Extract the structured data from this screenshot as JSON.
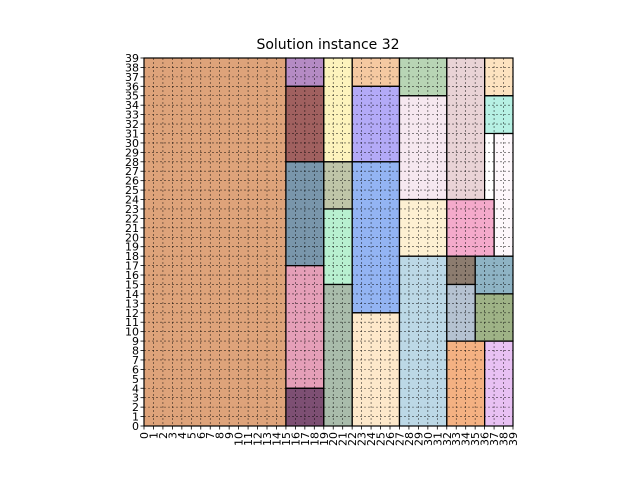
{
  "chart_data": {
    "type": "heatmap",
    "title": "Solution instance 32",
    "xlabel": "",
    "ylabel": "",
    "xlim": [
      0,
      39
    ],
    "ylim": [
      0,
      39
    ],
    "x_ticks": [
      "0",
      "1",
      "2",
      "3",
      "4",
      "5",
      "6",
      "7",
      "8",
      "9",
      "10",
      "11",
      "12",
      "13",
      "14",
      "15",
      "16",
      "17",
      "18",
      "19",
      "20",
      "21",
      "22",
      "23",
      "24",
      "25",
      "26",
      "27",
      "28",
      "29",
      "30",
      "31",
      "32",
      "33",
      "34",
      "35",
      "36",
      "37",
      "38",
      "39"
    ],
    "y_ticks": [
      "0",
      "1",
      "2",
      "3",
      "4",
      "5",
      "6",
      "7",
      "8",
      "9",
      "10",
      "11",
      "12",
      "13",
      "14",
      "15",
      "16",
      "17",
      "18",
      "19",
      "20",
      "21",
      "22",
      "23",
      "24",
      "25",
      "26",
      "27",
      "28",
      "29",
      "30",
      "31",
      "32",
      "33",
      "34",
      "35",
      "36",
      "37",
      "38",
      "39"
    ],
    "grid": true,
    "rectangles": [
      {
        "x0": 0,
        "y0": 0,
        "x1": 15,
        "y1": 39,
        "color": "#dea37a"
      },
      {
        "x0": 15,
        "y0": 36,
        "x1": 19,
        "y1": 39,
        "color": "#b58bc4"
      },
      {
        "x0": 15,
        "y0": 28,
        "x1": 19,
        "y1": 36,
        "color": "#a0605f"
      },
      {
        "x0": 15,
        "y0": 17,
        "x1": 19,
        "y1": 28,
        "color": "#7996ab"
      },
      {
        "x0": 15,
        "y0": 4,
        "x1": 19,
        "y1": 17,
        "color": "#e59fb8"
      },
      {
        "x0": 15,
        "y0": 0,
        "x1": 19,
        "y1": 4,
        "color": "#7d4f73"
      },
      {
        "x0": 19,
        "y0": 28,
        "x1": 22,
        "y1": 39,
        "color": "#fdf3bd"
      },
      {
        "x0": 19,
        "y0": 23,
        "x1": 22,
        "y1": 28,
        "color": "#bfc5a8"
      },
      {
        "x0": 19,
        "y0": 15,
        "x1": 22,
        "y1": 23,
        "color": "#b8f0d0"
      },
      {
        "x0": 19,
        "y0": 0,
        "x1": 22,
        "y1": 15,
        "color": "#a9bcab"
      },
      {
        "x0": 22,
        "y0": 36,
        "x1": 27,
        "y1": 39,
        "color": "#f5c9a1"
      },
      {
        "x0": 22,
        "y0": 28,
        "x1": 27,
        "y1": 36,
        "color": "#b3aaf7"
      },
      {
        "x0": 22,
        "y0": 12,
        "x1": 27,
        "y1": 28,
        "color": "#93b4f3"
      },
      {
        "x0": 22,
        "y0": 0,
        "x1": 27,
        "y1": 12,
        "color": "#fde8ca"
      },
      {
        "x0": 27,
        "y0": 35,
        "x1": 32,
        "y1": 39,
        "color": "#b8d5b5"
      },
      {
        "x0": 27,
        "y0": 24,
        "x1": 32,
        "y1": 35,
        "color": "#f6e8f0"
      },
      {
        "x0": 27,
        "y0": 18,
        "x1": 32,
        "y1": 24,
        "color": "#fdf0d2"
      },
      {
        "x0": 27,
        "y0": 0,
        "x1": 32,
        "y1": 18,
        "color": "#bcd8e6"
      },
      {
        "x0": 32,
        "y0": 24,
        "x1": 36,
        "y1": 39,
        "color": "#e9d3d6"
      },
      {
        "x0": 32,
        "y0": 18,
        "x1": 37,
        "y1": 24,
        "color": "#f4aacb"
      },
      {
        "x0": 36,
        "y0": 35,
        "x1": 39,
        "y1": 39,
        "color": "#fde3c0"
      },
      {
        "x0": 36,
        "y0": 31,
        "x1": 39,
        "y1": 35,
        "color": "#b7f1e4"
      },
      {
        "x0": 37,
        "y0": 18,
        "x1": 39,
        "y1": 31,
        "color": "#fdf7fb"
      },
      {
        "x0": 32,
        "y0": 15,
        "x1": 35,
        "y1": 18,
        "color": "#8c7c6f"
      },
      {
        "x0": 35,
        "y0": 14,
        "x1": 39,
        "y1": 18,
        "color": "#8eb3c4"
      },
      {
        "x0": 32,
        "y0": 9,
        "x1": 35,
        "y1": 15,
        "color": "#b5c2d1"
      },
      {
        "x0": 35,
        "y0": 9,
        "x1": 39,
        "y1": 14,
        "color": "#9eb286"
      },
      {
        "x0": 32,
        "y0": 0,
        "x1": 36,
        "y1": 9,
        "color": "#f4b182"
      },
      {
        "x0": 36,
        "y0": 0,
        "x1": 39,
        "y1": 9,
        "color": "#e8c1f3"
      }
    ]
  }
}
